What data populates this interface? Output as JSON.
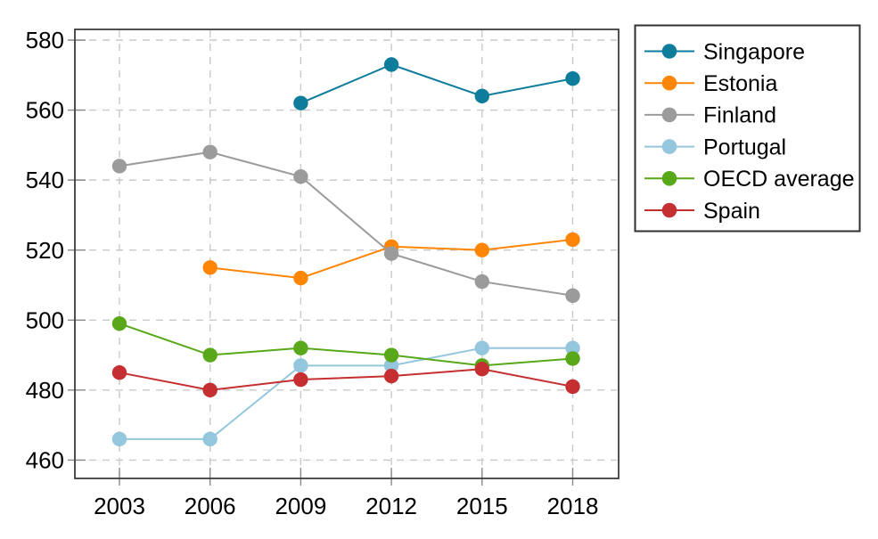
{
  "chart_data": {
    "type": "line",
    "title": "",
    "xlabel": "",
    "ylabel": "",
    "x": [
      2003,
      2006,
      2009,
      2012,
      2015,
      2018
    ],
    "x_tick_labels": [
      "2003",
      "2006",
      "2009",
      "2012",
      "2015",
      "2018"
    ],
    "y_ticks": [
      460,
      480,
      500,
      520,
      540,
      560,
      580
    ],
    "y_tick_labels": [
      "460",
      "480",
      "500",
      "520",
      "540",
      "560",
      "580"
    ],
    "ylim": [
      454.8,
      583.1
    ],
    "xlim": [
      2001.5,
      2019.6
    ],
    "grid": true,
    "grid_style": "dashed",
    "marker": "circle",
    "legend_position": "outside-right",
    "series": [
      {
        "name": "Singapore",
        "color": "#0e7d9c",
        "values": [
          null,
          null,
          562,
          573,
          564,
          569
        ]
      },
      {
        "name": "Estonia",
        "color": "#ff8505",
        "values": [
          null,
          515,
          512,
          521,
          520,
          523
        ]
      },
      {
        "name": "Finland",
        "color": "#9b9b9b",
        "values": [
          544,
          548,
          541,
          519,
          511,
          507
        ]
      },
      {
        "name": "Portugal",
        "color": "#94c6dd",
        "values": [
          466,
          466,
          487,
          487,
          492,
          492
        ]
      },
      {
        "name": "OECD average",
        "color": "#58a819",
        "values": [
          499,
          490,
          492,
          490,
          487,
          489
        ]
      },
      {
        "name": "Spain",
        "color": "#c52f32",
        "values": [
          485,
          480,
          483,
          484,
          486,
          481
        ]
      }
    ],
    "colors": {
      "background": "#ffffff",
      "grid": "#c9c9c9",
      "axis": "#3c3c3c",
      "tick": "#8a8a8a",
      "text": "#000000",
      "legend_border": "#2f2f2f"
    }
  }
}
